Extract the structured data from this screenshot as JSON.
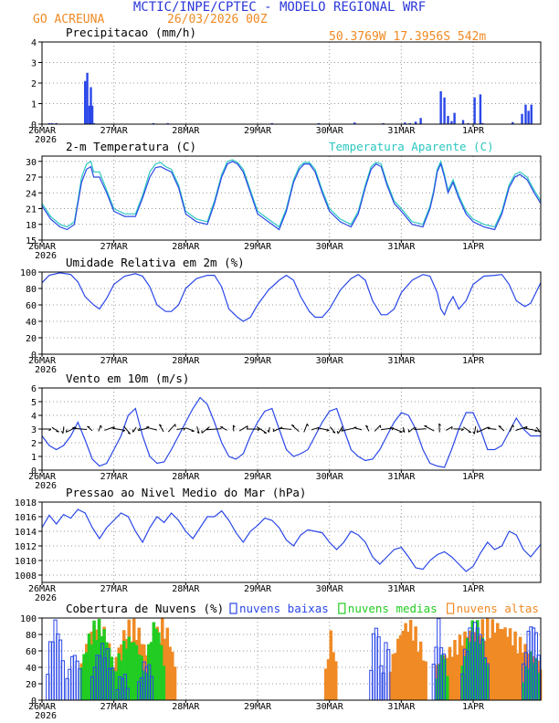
{
  "header": {
    "title": "MCTIC/INPE/CPTEC - MODELO REGIONAL WRF",
    "location": "GO ACREUNA",
    "run": "26/03/2026 00Z",
    "coords": "50.3769W 17.3956S 542m"
  },
  "colors": {
    "title": "#2b37d8",
    "orange": "#f08a24",
    "blue": "#2a47e8",
    "cyan": "#2bc7c0",
    "green": "#22cc22",
    "grid": "#999999"
  },
  "x_axis": {
    "labels": [
      "26MAR",
      "27MAR",
      "28MAR",
      "29MAR",
      "30MAR",
      "31MAR",
      "1APR"
    ],
    "year": "2026",
    "day_start": 0,
    "day_end": 6.94
  },
  "chart_data": [
    {
      "type": "bar",
      "title": "Precipitacao (mm/h)",
      "ylim": [
        0,
        4
      ],
      "yticks": [
        0,
        1,
        2,
        3,
        4
      ],
      "ytick_labels": [
        "0",
        "1",
        "2",
        "3",
        "4"
      ],
      "t": [
        0.1,
        0.14,
        0.2,
        0.6,
        0.63,
        0.66,
        0.68,
        0.7,
        0.72,
        1.55,
        1.75,
        3.2,
        3.85,
        4.35,
        4.75,
        5.05,
        5.12,
        5.2,
        5.27,
        5.55,
        5.6,
        5.65,
        5.7,
        5.74,
        5.86,
        5.93,
        6.02,
        6.1,
        6.13,
        6.55,
        6.68,
        6.73,
        6.77,
        6.81
      ],
      "values": [
        0.05,
        0.05,
        0.05,
        2.1,
        2.5,
        0.9,
        1.8,
        0.9,
        0.05,
        0.05,
        0.05,
        0.05,
        0.05,
        0.08,
        0.05,
        0.08,
        0.05,
        0.12,
        0.3,
        1.6,
        1.3,
        0.4,
        0.15,
        0.55,
        0.2,
        0.05,
        1.3,
        1.45,
        0.05,
        0.1,
        0.5,
        0.95,
        0.65,
        0.95
      ]
    },
    {
      "type": "line",
      "title": "2-m Temperatura (C)",
      "legend": "Temperatura Aparente (C)",
      "ylim": [
        15,
        31
      ],
      "yticks": [
        15,
        18,
        21,
        24,
        27,
        30
      ],
      "ytick_labels": [
        "15",
        "18",
        "21",
        "24",
        "27",
        "30"
      ],
      "series": [
        {
          "name": "2-m Temperatura (C)",
          "t": [
            0,
            0.12,
            0.25,
            0.35,
            0.45,
            0.5,
            0.55,
            0.62,
            0.68,
            0.72,
            0.8,
            0.9,
            1.0,
            1.15,
            1.3,
            1.4,
            1.5,
            1.58,
            1.65,
            1.72,
            1.8,
            1.9,
            2.0,
            2.15,
            2.3,
            2.4,
            2.5,
            2.58,
            2.65,
            2.72,
            2.8,
            2.9,
            3.0,
            3.15,
            3.3,
            3.4,
            3.5,
            3.58,
            3.65,
            3.72,
            3.8,
            3.9,
            4.0,
            4.15,
            4.3,
            4.4,
            4.5,
            4.58,
            4.65,
            4.72,
            4.8,
            4.9,
            5.0,
            5.15,
            5.3,
            5.4,
            5.45,
            5.5,
            5.55,
            5.6,
            5.65,
            5.72,
            5.8,
            5.9,
            6.0,
            6.15,
            6.3,
            6.4,
            6.5,
            6.58,
            6.65,
            6.75,
            6.85,
            6.94
          ],
          "values": [
            21.5,
            19,
            17.5,
            17,
            18,
            22,
            26,
            28.5,
            29,
            27,
            27,
            24,
            20.5,
            19.5,
            19.5,
            23,
            27,
            28.8,
            29,
            28.5,
            28,
            25,
            20,
            18.5,
            18,
            22,
            27,
            29.5,
            30,
            29.5,
            28,
            24,
            20,
            18.5,
            17,
            20.5,
            26,
            28.5,
            29.5,
            29.5,
            28,
            24,
            20.5,
            18.5,
            17.5,
            20,
            25,
            28.5,
            29.5,
            29,
            25.5,
            22,
            20.5,
            18,
            17.5,
            21,
            24,
            28,
            29.5,
            27,
            24,
            26,
            23,
            20,
            18.5,
            17.5,
            17,
            20,
            25,
            27,
            27.5,
            26.5,
            24,
            22
          ]
        },
        {
          "name": "Temperatura Aparente (C)",
          "t": [
            0,
            0.12,
            0.25,
            0.35,
            0.45,
            0.5,
            0.55,
            0.62,
            0.68,
            0.72,
            0.8,
            0.9,
            1.0,
            1.15,
            1.3,
            1.4,
            1.5,
            1.58,
            1.65,
            1.72,
            1.8,
            1.9,
            2.0,
            2.15,
            2.3,
            2.4,
            2.5,
            2.58,
            2.65,
            2.72,
            2.8,
            2.9,
            3.0,
            3.15,
            3.3,
            3.4,
            3.5,
            3.58,
            3.65,
            3.72,
            3.8,
            3.9,
            4.0,
            4.15,
            4.3,
            4.4,
            4.5,
            4.58,
            4.65,
            4.72,
            4.8,
            4.9,
            5.0,
            5.15,
            5.3,
            5.4,
            5.45,
            5.5,
            5.55,
            5.6,
            5.65,
            5.72,
            5.8,
            5.9,
            6.0,
            6.15,
            6.3,
            6.4,
            6.5,
            6.58,
            6.65,
            6.75,
            6.85,
            6.94
          ],
          "values": [
            22,
            19.5,
            18,
            17.5,
            18.5,
            22.5,
            27,
            29.5,
            30,
            28,
            28,
            24.5,
            21,
            20,
            20,
            23.5,
            28,
            29.5,
            29.8,
            29,
            28.5,
            25.5,
            20.5,
            19,
            18.5,
            22.5,
            27.5,
            30,
            30.3,
            29.8,
            28.5,
            24.5,
            20.5,
            19,
            17.5,
            21,
            26.5,
            29,
            29.8,
            29.8,
            28.5,
            24.5,
            21,
            19,
            18,
            20.5,
            25.5,
            29,
            29.8,
            29.5,
            26,
            22.5,
            21,
            18.5,
            18,
            21.5,
            24.5,
            28.5,
            30,
            27.5,
            24.5,
            26.5,
            23.5,
            20.5,
            19,
            18,
            17.5,
            20.5,
            25.5,
            27.5,
            28,
            27,
            24.5,
            22.5
          ]
        }
      ]
    },
    {
      "type": "line",
      "title": "Umidade Relativa em 2m (%)",
      "ylim": [
        0,
        100
      ],
      "yticks": [
        0,
        20,
        40,
        60,
        80,
        100
      ],
      "ytick_labels": [
        "0",
        "20",
        "40",
        "60",
        "80",
        "100"
      ],
      "series": [
        {
          "name": "Umidade Relativa em 2m (%)",
          "t": [
            0,
            0.1,
            0.25,
            0.4,
            0.5,
            0.6,
            0.72,
            0.8,
            0.9,
            1.0,
            1.15,
            1.3,
            1.4,
            1.5,
            1.6,
            1.72,
            1.8,
            1.9,
            2.0,
            2.15,
            2.3,
            2.4,
            2.5,
            2.6,
            2.72,
            2.8,
            2.9,
            3.0,
            3.15,
            3.3,
            3.4,
            3.5,
            3.6,
            3.72,
            3.8,
            3.9,
            4.0,
            4.15,
            4.3,
            4.4,
            4.5,
            4.6,
            4.72,
            4.8,
            4.9,
            5.0,
            5.15,
            5.3,
            5.4,
            5.5,
            5.55,
            5.6,
            5.65,
            5.72,
            5.8,
            5.9,
            6.0,
            6.15,
            6.3,
            6.4,
            6.5,
            6.6,
            6.72,
            6.8,
            6.9,
            6.94
          ],
          "values": [
            87,
            96,
            99,
            97,
            88,
            70,
            60,
            55,
            68,
            85,
            95,
            98,
            95,
            82,
            60,
            52,
            52,
            60,
            80,
            92,
            96,
            96,
            82,
            55,
            45,
            40,
            45,
            60,
            78,
            90,
            96,
            90,
            70,
            52,
            45,
            45,
            55,
            78,
            92,
            97,
            90,
            65,
            48,
            48,
            55,
            75,
            90,
            97,
            95,
            75,
            55,
            48,
            60,
            70,
            55,
            65,
            85,
            95,
            96,
            97,
            85,
            65,
            58,
            62,
            80,
            87
          ]
        }
      ]
    },
    {
      "type": "line",
      "title": "Vento em 10m (m/s)",
      "ylim": [
        0,
        6
      ],
      "yticks": [
        0,
        1,
        2,
        3,
        4,
        5,
        6
      ],
      "ytick_labels": [
        "0",
        "1",
        "2",
        "3",
        "4",
        "5",
        "6"
      ],
      "series": [
        {
          "name": "Vento em 10m (m/s)",
          "t": [
            0,
            0.1,
            0.2,
            0.3,
            0.4,
            0.5,
            0.6,
            0.7,
            0.8,
            0.9,
            1.0,
            1.1,
            1.2,
            1.3,
            1.4,
            1.5,
            1.6,
            1.7,
            1.8,
            1.9,
            2.0,
            2.1,
            2.2,
            2.3,
            2.4,
            2.5,
            2.6,
            2.7,
            2.8,
            2.9,
            3.0,
            3.1,
            3.2,
            3.3,
            3.4,
            3.5,
            3.6,
            3.7,
            3.8,
            3.9,
            4.0,
            4.1,
            4.2,
            4.3,
            4.4,
            4.5,
            4.6,
            4.7,
            4.8,
            4.9,
            5.0,
            5.1,
            5.2,
            5.3,
            5.4,
            5.5,
            5.6,
            5.7,
            5.8,
            5.9,
            6.0,
            6.1,
            6.2,
            6.3,
            6.4,
            6.5,
            6.6,
            6.7,
            6.8,
            6.94
          ],
          "values": [
            2.5,
            1.8,
            1.5,
            1.8,
            2.5,
            3.5,
            2.2,
            0.8,
            0.3,
            0.5,
            1.5,
            2.5,
            4.0,
            4.5,
            2.5,
            1.0,
            0.5,
            0.6,
            1.5,
            2.5,
            3.5,
            4.5,
            5.3,
            4.8,
            3.5,
            2.0,
            1.0,
            0.8,
            1.2,
            2.5,
            3.5,
            4.3,
            4.5,
            3.0,
            1.5,
            1.0,
            1.2,
            1.5,
            2.5,
            3.5,
            4.3,
            4.5,
            3.0,
            1.5,
            1.0,
            0.7,
            0.8,
            1.5,
            2.5,
            3.5,
            4.2,
            4.0,
            3.0,
            1.5,
            0.5,
            0.3,
            0.2,
            1.5,
            3.0,
            4.2,
            4.2,
            3.0,
            1.5,
            1.5,
            1.8,
            2.8,
            3.8,
            3.0,
            2.5,
            2.5
          ]
        }
      ],
      "wind_barbs": {
        "t_start": 0.05,
        "t_end": 6.9,
        "count": 56
      }
    },
    {
      "type": "line",
      "title": "Pressao ao Nivel Medio do Mar (hPa)",
      "ylim": [
        1007,
        1018
      ],
      "yticks": [
        1008,
        1010,
        1012,
        1014,
        1016,
        1018
      ],
      "ytick_labels": [
        "1008",
        "1010",
        "1012",
        "1014",
        "1016",
        "1018"
      ],
      "series": [
        {
          "name": "Pressao ao Nivel Medio do Mar (hPa)",
          "t": [
            0,
            0.1,
            0.2,
            0.3,
            0.4,
            0.5,
            0.6,
            0.7,
            0.8,
            0.9,
            1.0,
            1.1,
            1.2,
            1.3,
            1.4,
            1.5,
            1.6,
            1.7,
            1.8,
            1.9,
            2.0,
            2.1,
            2.2,
            2.3,
            2.4,
            2.5,
            2.6,
            2.7,
            2.8,
            2.9,
            3.0,
            3.1,
            3.2,
            3.3,
            3.4,
            3.5,
            3.6,
            3.7,
            3.8,
            3.9,
            4.0,
            4.1,
            4.2,
            4.3,
            4.4,
            4.5,
            4.6,
            4.7,
            4.8,
            4.9,
            5.0,
            5.1,
            5.2,
            5.3,
            5.4,
            5.5,
            5.6,
            5.7,
            5.8,
            5.9,
            6.0,
            6.1,
            6.2,
            6.3,
            6.4,
            6.5,
            6.6,
            6.7,
            6.8,
            6.94
          ],
          "values": [
            1014.5,
            1016.2,
            1015.0,
            1016.3,
            1015.8,
            1017.0,
            1016.5,
            1014.5,
            1013.0,
            1014.5,
            1015.5,
            1016.5,
            1016.0,
            1014.0,
            1012.5,
            1014.5,
            1016.0,
            1015.2,
            1016.5,
            1015.5,
            1014.0,
            1013.0,
            1014.5,
            1016.0,
            1016.0,
            1016.8,
            1015.5,
            1013.8,
            1012.5,
            1014.0,
            1014.8,
            1015.8,
            1015.5,
            1014.5,
            1012.8,
            1012.0,
            1013.5,
            1014.2,
            1014.0,
            1013.8,
            1012.5,
            1011.5,
            1012.5,
            1014.0,
            1013.5,
            1012.5,
            1010.5,
            1009.5,
            1010.5,
            1011.5,
            1011.8,
            1010.5,
            1009.0,
            1008.8,
            1010.0,
            1010.8,
            1011.2,
            1010.5,
            1009.5,
            1008.5,
            1009.2,
            1011.0,
            1012.5,
            1011.5,
            1012.0,
            1014.0,
            1013.5,
            1011.5,
            1010.5,
            1012.2
          ]
        }
      ]
    },
    {
      "type": "bar",
      "title": "Cobertura de Nuvens (%)",
      "ylim": [
        0,
        100
      ],
      "yticks": [
        0,
        20,
        40,
        60,
        80,
        100
      ],
      "ytick_labels": [
        "0",
        "20",
        "40",
        "60",
        "80",
        "100"
      ],
      "legend": [
        "nuvens baixas",
        "nuvens medias",
        "nuvens altas"
      ],
      "series": [
        {
          "name": "nuvens baixas",
          "segments": [
            {
              "t0": 0.08,
              "t1": 0.3,
              "peak": 100
            },
            {
              "t0": 0.35,
              "t1": 0.55,
              "peak": 60
            },
            {
              "t0": 0.7,
              "t1": 1.0,
              "peak": 70
            },
            {
              "t0": 1.05,
              "t1": 1.2,
              "peak": 35
            },
            {
              "t0": 1.35,
              "t1": 1.55,
              "peak": 50
            },
            {
              "t0": 4.58,
              "t1": 4.72,
              "peak": 100
            },
            {
              "t0": 4.75,
              "t1": 4.85,
              "peak": 80
            },
            {
              "t0": 5.45,
              "t1": 5.6,
              "peak": 100
            },
            {
              "t0": 5.85,
              "t1": 6.2,
              "peak": 100
            },
            {
              "t0": 6.7,
              "t1": 6.94,
              "peak": 100
            }
          ]
        },
        {
          "name": "nuvens medias",
          "segments": [
            {
              "t0": 0.55,
              "t1": 1.0,
              "peak": 100
            },
            {
              "t0": 1.0,
              "t1": 1.45,
              "peak": 80
            },
            {
              "t0": 1.45,
              "t1": 1.7,
              "peak": 100
            },
            {
              "t0": 5.5,
              "t1": 5.65,
              "peak": 60
            },
            {
              "t0": 5.85,
              "t1": 6.2,
              "peak": 100
            },
            {
              "t0": 6.7,
              "t1": 6.94,
              "peak": 60
            }
          ]
        },
        {
          "name": "nuvens altas",
          "segments": [
            {
              "t0": 0.55,
              "t1": 1.0,
              "peak": 100
            },
            {
              "t0": 1.0,
              "t1": 1.5,
              "peak": 100
            },
            {
              "t0": 1.5,
              "t1": 1.85,
              "peak": 100
            },
            {
              "t0": 3.95,
              "t1": 4.1,
              "peak": 85
            },
            {
              "t0": 4.85,
              "t1": 5.35,
              "peak": 100
            },
            {
              "t0": 5.5,
              "t1": 6.94,
              "peak": 100
            }
          ]
        }
      ]
    }
  ]
}
